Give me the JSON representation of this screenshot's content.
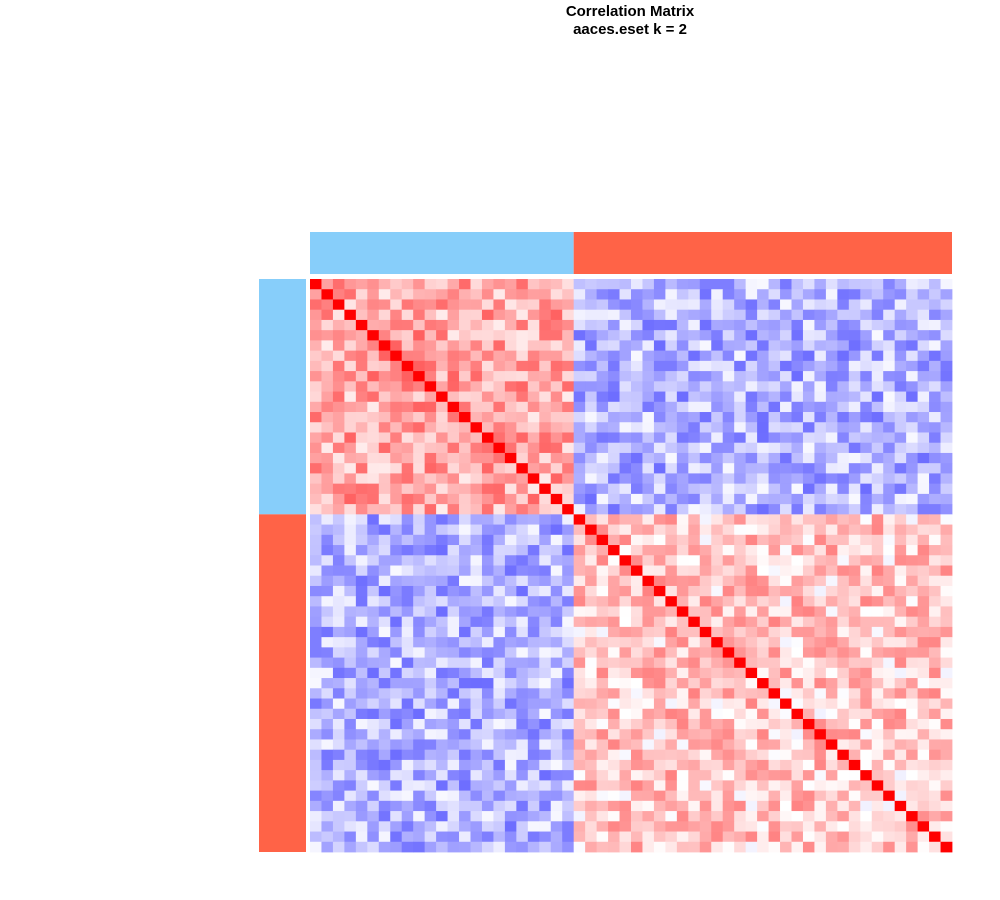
{
  "chart_data": {
    "type": "heatmap",
    "title": "Correlation Matrix",
    "subtitle": "aaces.eset k = 2",
    "n": 56,
    "clusters": [
      {
        "color": "#87CEFA",
        "size": 23
      },
      {
        "color": "#FF6347",
        "size": 33
      }
    ],
    "color_scale": {
      "low": "#0000FF",
      "mid": "#FFFFFF",
      "high": "#FF0000",
      "range": [
        -1,
        1
      ]
    },
    "diagonal_value": 1,
    "approx_block_correlation": {
      "within_cluster_1": 0.35,
      "within_cluster_2": 0.22,
      "between_clusters": -0.3
    }
  }
}
